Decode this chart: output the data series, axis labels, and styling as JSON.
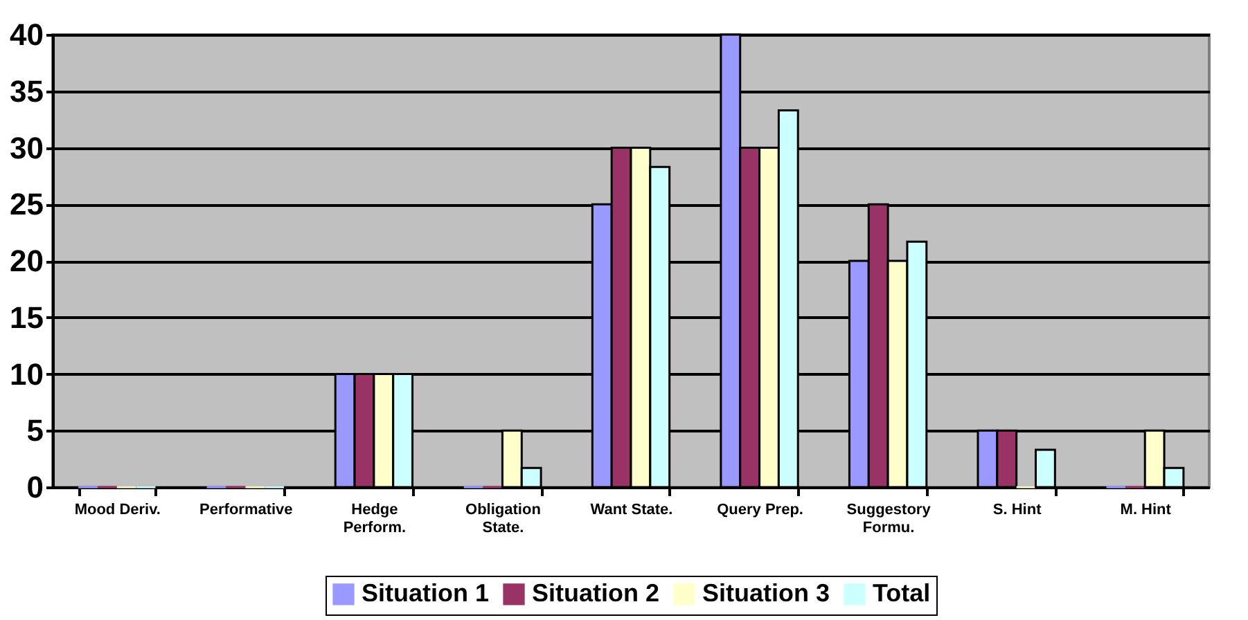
{
  "chart_data": {
    "type": "bar",
    "categories": [
      "Mood Deriv.",
      "Performative",
      "Hedge Perform.",
      "Obligation State.",
      "Want State.",
      "Query Prep.",
      "Suggestory Formu.",
      "S. Hint",
      "M. Hint"
    ],
    "series": [
      {
        "name": "Situation 1",
        "color": "#9999ff",
        "values": [
          0,
          0,
          10,
          0,
          25,
          40,
          20,
          5,
          0
        ]
      },
      {
        "name": "Situation 2",
        "color": "#993366",
        "values": [
          0,
          0,
          10,
          0,
          30,
          30,
          25,
          5,
          0
        ]
      },
      {
        "name": "Situation 3",
        "color": "#ffffcc",
        "values": [
          0,
          0,
          10,
          5,
          30,
          30,
          20,
          0,
          5
        ]
      },
      {
        "name": "Total",
        "color": "#ccffff",
        "values": [
          0,
          0,
          10,
          1.7,
          28.3,
          33.3,
          21.7,
          3.3,
          1.7
        ]
      }
    ],
    "ylim": [
      0,
      40
    ],
    "yticks": [
      0,
      5,
      10,
      15,
      20,
      25,
      30,
      35,
      40
    ],
    "grid": "y",
    "legend": "bottom"
  }
}
